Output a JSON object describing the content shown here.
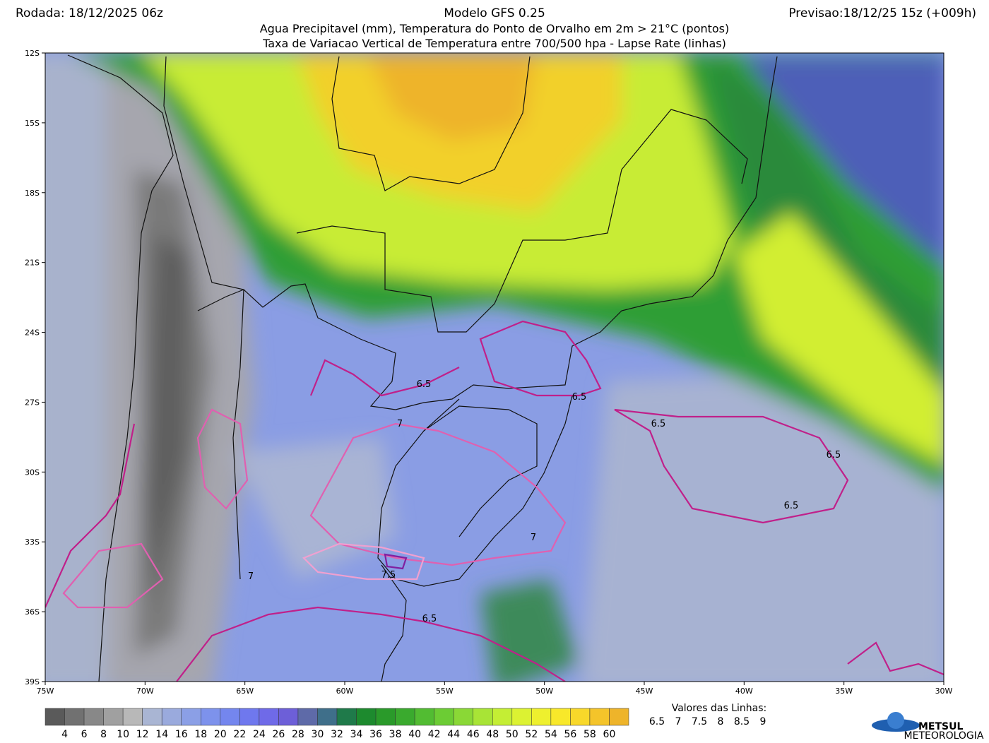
{
  "header": {
    "run": "Rodada: 18/12/2025 06z",
    "model": "Modelo GFS 0.25",
    "forecast": "Previsao:18/12/25 15z (+009h)",
    "line1": "Agua Precipitavel (mm), Temperatura do Ponto de Orvalho em 2m > 21°C (pontos)",
    "line2": "Taxa de Variacao Vertical de Temperatura entre 700/500 hpa - Lapse Rate (linhas)"
  },
  "map": {
    "lat_labels": [
      "12S",
      "15S",
      "18S",
      "21S",
      "24S",
      "27S",
      "30S",
      "33S",
      "36S",
      "39S"
    ],
    "lon_labels": [
      "75W",
      "70W",
      "65W",
      "60W",
      "55W",
      "50W",
      "45W",
      "40W",
      "35W",
      "30W"
    ],
    "contour_labels": [
      "6.5",
      "6.5",
      "6.5",
      "6.5",
      "6.5",
      "7",
      "7",
      "7",
      "7.5",
      "6.5"
    ]
  },
  "colorbar": {
    "labels": [
      4,
      6,
      8,
      10,
      12,
      14,
      16,
      18,
      20,
      22,
      24,
      26,
      28,
      30,
      32,
      34,
      36,
      38,
      40,
      42,
      44,
      46,
      48,
      50,
      52,
      54,
      56,
      58,
      60
    ],
    "colors": [
      "#5a5a5a",
      "#717171",
      "#888888",
      "#a0a0a0",
      "#b8b8b8",
      "#a9b5d3",
      "#9aaadd",
      "#8b9fe6",
      "#7d92ec",
      "#7486ee",
      "#6f78ee",
      "#6f6ae8",
      "#6d5fd8",
      "#5e6aa8",
      "#3f6f8a",
      "#1f7a4a",
      "#1d8a2e",
      "#2a9a2a",
      "#3aaa2e",
      "#52bc32",
      "#6ccc34",
      "#8ad836",
      "#a8e436",
      "#c4ee34",
      "#dcf232",
      "#eef02e",
      "#f8e82a",
      "#f8d82a",
      "#f4c42a",
      "#eeb42a"
    ]
  },
  "line_legend": {
    "title": "Valores das Linhas:",
    "values": [
      {
        "label": "6.5",
        "color": "#c0208a"
      },
      {
        "label": "7",
        "color": "#e060b0"
      },
      {
        "label": "7.5",
        "color": "#f0a0d0"
      },
      {
        "label": "8",
        "color": "#8020a0"
      },
      {
        "label": "8.5",
        "color": "#a060c0"
      },
      {
        "label": "9",
        "color": "#d0b0e0"
      }
    ]
  },
  "logo": {
    "name": "METSUL",
    "tagline": "METEOROLOGIA"
  }
}
